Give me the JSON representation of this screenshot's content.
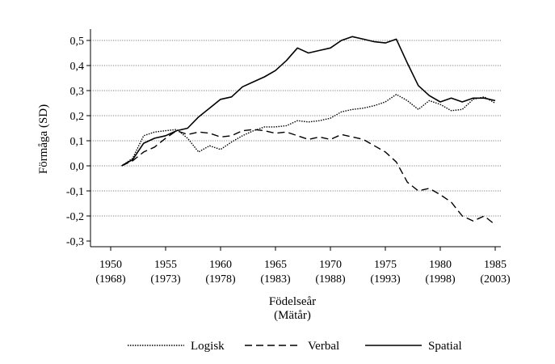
{
  "chart_data": {
    "type": "line",
    "title": "",
    "ylabel": "Förmåga (SD)",
    "xlabel": [
      "Födelseår",
      "(Mätår)"
    ],
    "xlim": [
      1950,
      1985
    ],
    "ylim": [
      -0.3,
      0.5
    ],
    "grid": "horizontal dotted",
    "legend_position": "bottom",
    "x_ticks": [
      1950,
      1955,
      1960,
      1965,
      1970,
      1975,
      1980,
      1985
    ],
    "x_tick_labels": [
      [
        "1950",
        "(1968)"
      ],
      [
        "1955",
        "(1973)"
      ],
      [
        "1960",
        "(1978)"
      ],
      [
        "1965",
        "(1983)"
      ],
      [
        "1970",
        "(1988)"
      ],
      [
        "1975",
        "(1993)"
      ],
      [
        "1980",
        "(1998)"
      ],
      [
        "1985",
        "(2003)"
      ]
    ],
    "y_ticks": [
      0.5,
      0.4,
      0.3,
      0.2,
      0.1,
      0.0,
      -0.1,
      -0.2,
      -0.3
    ],
    "y_tick_labels": [
      "0,5",
      "0,4",
      "0,3",
      "0,2",
      "0,1",
      "0,0",
      "-0,1",
      "-0,2",
      "-0,3"
    ],
    "x": [
      1951,
      1952,
      1953,
      1954,
      1955,
      1956,
      1957,
      1958,
      1959,
      1960,
      1961,
      1962,
      1963,
      1964,
      1965,
      1966,
      1967,
      1968,
      1969,
      1970,
      1971,
      1972,
      1973,
      1974,
      1975,
      1976,
      1977,
      1978,
      1979,
      1980,
      1981,
      1982,
      1983,
      1984,
      1985
    ],
    "series": [
      {
        "name": "Logisk",
        "style": "dotted",
        "values": [
          0.0,
          0.03,
          0.12,
          0.135,
          0.14,
          0.145,
          0.11,
          0.055,
          0.08,
          0.065,
          0.095,
          0.12,
          0.14,
          0.155,
          0.155,
          0.16,
          0.18,
          0.175,
          0.18,
          0.19,
          0.215,
          0.225,
          0.23,
          0.24,
          0.255,
          0.285,
          0.26,
          0.225,
          0.26,
          0.245,
          0.22,
          0.225,
          0.265,
          0.275,
          0.25
        ]
      },
      {
        "name": "Verbal",
        "style": "dashed",
        "values": [
          0.0,
          0.02,
          0.055,
          0.075,
          0.11,
          0.14,
          0.125,
          0.135,
          0.13,
          0.115,
          0.12,
          0.14,
          0.145,
          0.14,
          0.13,
          0.135,
          0.12,
          0.105,
          0.115,
          0.105,
          0.125,
          0.115,
          0.105,
          0.08,
          0.055,
          0.015,
          -0.065,
          -0.1,
          -0.09,
          -0.115,
          -0.145,
          -0.2,
          -0.22,
          -0.2,
          -0.235
        ]
      },
      {
        "name": "Spatial",
        "style": "solid",
        "values": [
          0.0,
          0.025,
          0.09,
          0.11,
          0.12,
          0.14,
          0.15,
          0.195,
          0.23,
          0.265,
          0.275,
          0.315,
          0.335,
          0.355,
          0.38,
          0.42,
          0.47,
          0.45,
          0.46,
          0.47,
          0.5,
          0.515,
          0.505,
          0.495,
          0.49,
          0.505,
          0.41,
          0.32,
          0.28,
          0.255,
          0.27,
          0.255,
          0.27,
          0.27,
          0.26
        ]
      }
    ]
  }
}
